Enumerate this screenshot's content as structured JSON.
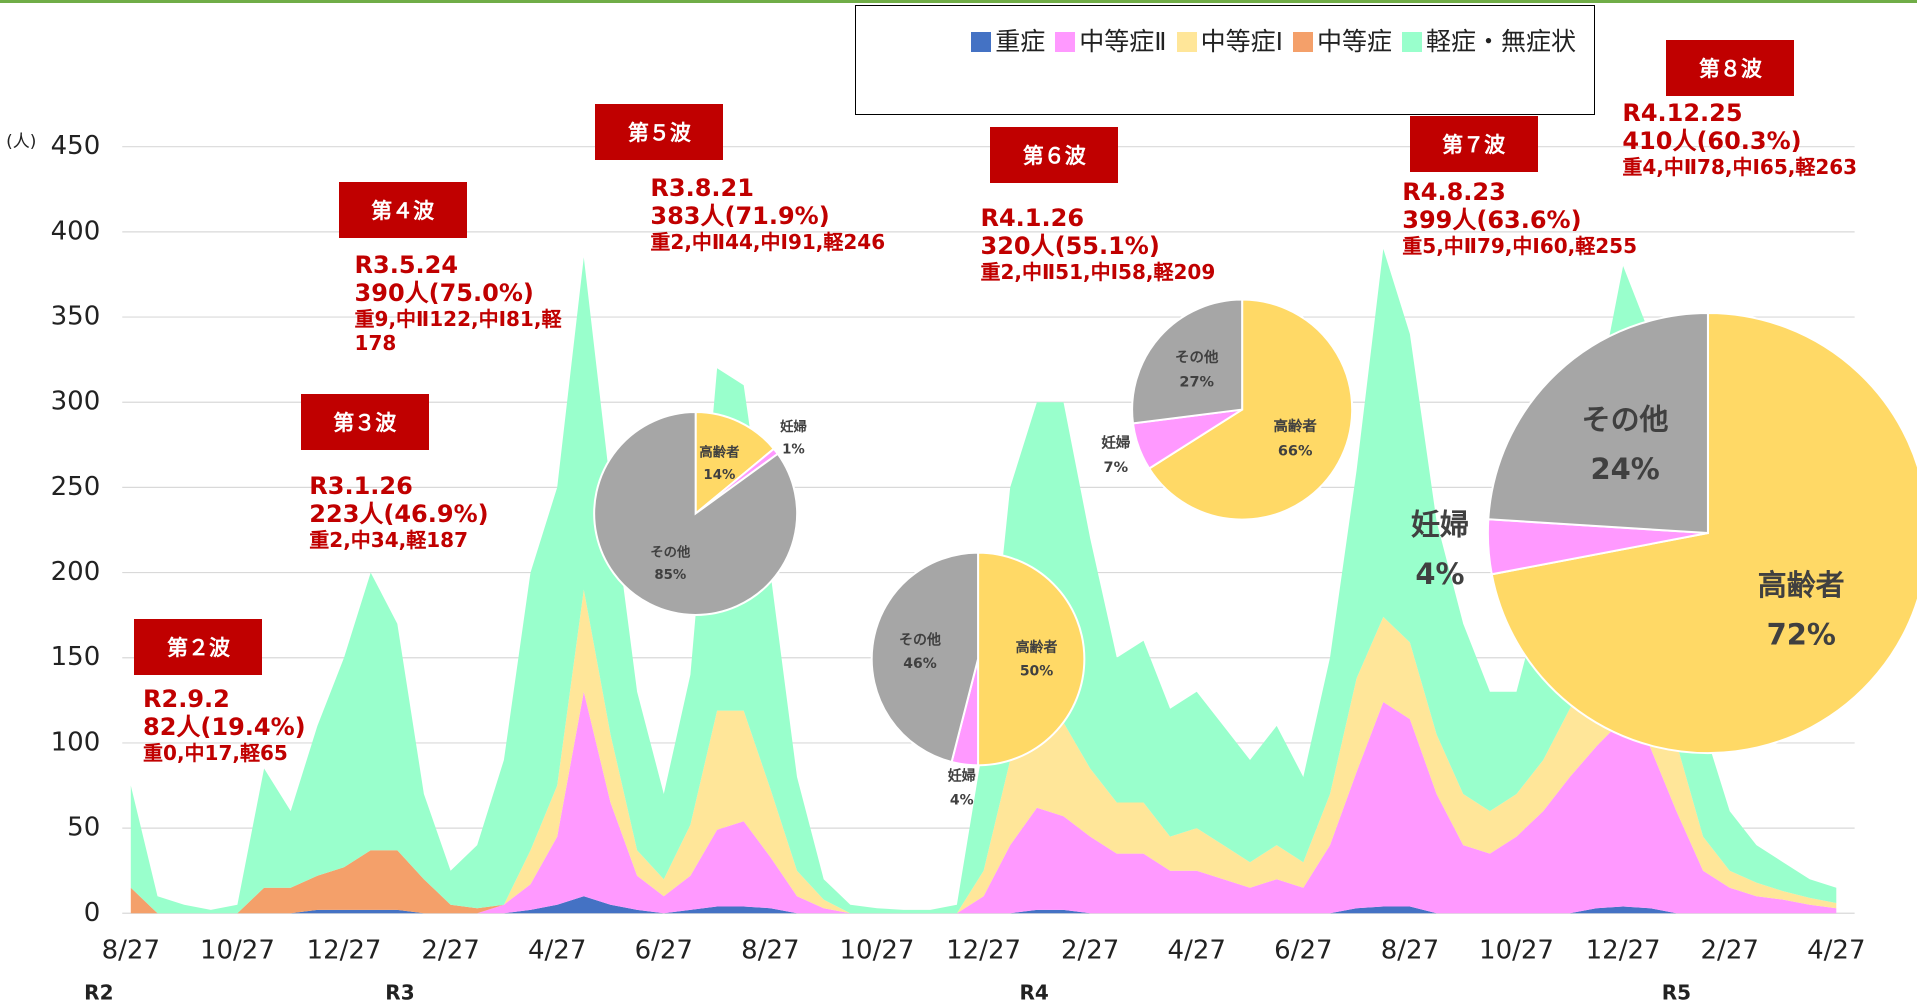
{
  "chart_data": [
    {
      "type": "area",
      "stacked": true,
      "grid": true,
      "y_unit": "(人)",
      "ylim": [
        0,
        450
      ],
      "yticks": [
        0,
        50,
        100,
        150,
        200,
        250,
        300,
        350,
        400,
        450
      ],
      "categories": [
        "8/27",
        null,
        null,
        null,
        "10/27",
        null,
        null,
        null,
        "12/27",
        null,
        null,
        null,
        "2/27",
        null,
        null,
        null,
        "4/27",
        null,
        null,
        null,
        "6/27",
        null,
        null,
        null,
        "8/27",
        null,
        null,
        null,
        "10/27",
        null,
        null,
        null,
        "12/27",
        null,
        null,
        null,
        "2/27",
        null,
        null,
        null,
        "4/27",
        null,
        null,
        null,
        "6/27",
        null,
        null,
        null,
        "8/27",
        null,
        null,
        null,
        "10/27",
        null,
        null,
        null,
        "12/27",
        null,
        null,
        null,
        "2/27",
        null,
        null,
        null,
        "4/27"
      ],
      "year_labels": [
        "R2",
        "R3",
        "R4",
        "R5"
      ],
      "series": [
        {
          "name": "重症",
          "color": "#4472c4",
          "values": [
            0,
            0,
            0,
            0,
            0,
            0,
            0,
            2,
            2,
            2,
            2,
            0,
            0,
            0,
            0,
            2,
            5,
            10,
            5,
            2,
            0,
            2,
            4,
            4,
            3,
            0,
            0,
            0,
            0,
            0,
            0,
            0,
            0,
            0,
            2,
            2,
            0,
            0,
            0,
            0,
            0,
            0,
            0,
            0,
            0,
            0,
            3,
            4,
            4,
            0,
            0,
            0,
            0,
            0,
            0,
            3,
            4,
            3,
            0,
            0,
            0,
            0,
            0,
            0,
            0
          ]
        },
        {
          "name": "中等症Ⅱ",
          "color": "#ff99ff",
          "values": [
            0,
            0,
            0,
            0,
            0,
            0,
            0,
            0,
            0,
            0,
            0,
            0,
            0,
            0,
            5,
            15,
            40,
            120,
            60,
            20,
            10,
            20,
            45,
            50,
            30,
            10,
            3,
            0,
            0,
            0,
            0,
            0,
            10,
            40,
            60,
            55,
            45,
            35,
            35,
            25,
            25,
            20,
            15,
            20,
            15,
            40,
            80,
            120,
            110,
            70,
            40,
            35,
            45,
            60,
            80,
            95,
            110,
            95,
            60,
            25,
            15,
            10,
            8,
            5,
            3
          ]
        },
        {
          "name": "中等症Ⅰ",
          "color": "#ffe699",
          "values": [
            0,
            0,
            0,
            0,
            0,
            0,
            0,
            0,
            0,
            0,
            0,
            0,
            0,
            0,
            0,
            20,
            30,
            60,
            40,
            15,
            10,
            30,
            70,
            65,
            40,
            15,
            5,
            0,
            0,
            0,
            0,
            0,
            15,
            50,
            60,
            55,
            40,
            30,
            30,
            20,
            25,
            20,
            15,
            20,
            15,
            30,
            55,
            50,
            45,
            35,
            30,
            25,
            25,
            30,
            40,
            50,
            55,
            50,
            40,
            20,
            10,
            8,
            5,
            4,
            3
          ]
        },
        {
          "name": "中等症",
          "color": "#f4a06a",
          "values": [
            15,
            0,
            0,
            0,
            0,
            15,
            15,
            20,
            25,
            35,
            35,
            20,
            5,
            3,
            0,
            0,
            0,
            0,
            0,
            0,
            0,
            0,
            0,
            0,
            0,
            0,
            0,
            0,
            0,
            0,
            0,
            0,
            0,
            0,
            0,
            0,
            0,
            0,
            0,
            0,
            0,
            0,
            0,
            0,
            0,
            0,
            0,
            0,
            0,
            0,
            0,
            0,
            0,
            0,
            0,
            0,
            0,
            0,
            0,
            0,
            0,
            0,
            0,
            0,
            0
          ]
        },
        {
          "name": "軽症・無症状",
          "color": "#99ffcc",
          "values": [
            60,
            10,
            5,
            2,
            5,
            70,
            45,
            88,
            123,
            163,
            133,
            50,
            20,
            37,
            85,
            163,
            175,
            195,
            145,
            93,
            50,
            88,
            201,
            191,
            127,
            55,
            12,
            5,
            3,
            2,
            2,
            5,
            75,
            160,
            178,
            188,
            135,
            85,
            95,
            75,
            80,
            70,
            60,
            70,
            50,
            80,
            122,
            216,
            181,
            125,
            100,
            70,
            60,
            100,
            130,
            152,
            211,
            192,
            120,
            65,
            35,
            22,
            17,
            11,
            9
          ]
        }
      ],
      "annotations": [
        {
          "wave": "第２波",
          "date": "R2.9.2",
          "total": "82人(19.4%)",
          "detail": "重0,中17,軽65"
        },
        {
          "wave": "第３波",
          "date": "R3.1.26",
          "total": "223人(46.9%)",
          "detail": "重2,中34,軽187"
        },
        {
          "wave": "第４波",
          "date": "R3.5.24",
          "total": "390人(75.0%)",
          "detail": "重9,中Ⅱ122,中Ⅰ81,軽178"
        },
        {
          "wave": "第５波",
          "date": "R3.8.21",
          "total": "383人(71.9%)",
          "detail": "重2,中Ⅱ44,中Ⅰ91,軽246"
        },
        {
          "wave": "第６波",
          "date": "R4.1.26",
          "total": "320人(55.1%)",
          "detail": "重2,中Ⅱ51,中Ⅰ58,軽209"
        },
        {
          "wave": "第７波",
          "date": "R4.8.23",
          "total": "399人(63.6%)",
          "detail": "重5,中Ⅱ79,中Ⅰ60,軽255"
        },
        {
          "wave": "第８波",
          "date": "R4.12.25",
          "total": "410人(60.3%)",
          "detail": "重4,中Ⅱ78,中Ⅰ65,軽263"
        }
      ]
    },
    {
      "type": "pie",
      "labels": [
        "高齢者",
        "妊婦",
        "その他"
      ],
      "values": [
        14,
        1,
        85
      ],
      "value_labels": [
        "14%",
        "1%",
        "85%"
      ],
      "colors": [
        "#ffd966",
        "#ff99ff",
        "#a6a6a6"
      ]
    },
    {
      "type": "pie",
      "labels": [
        "高齢者",
        "妊婦",
        "その他"
      ],
      "values": [
        50,
        4,
        46
      ],
      "value_labels": [
        "50%",
        "4%",
        "46%"
      ],
      "colors": [
        "#ffd966",
        "#ff99ff",
        "#a6a6a6"
      ]
    },
    {
      "type": "pie",
      "labels": [
        "高齢者",
        "妊婦",
        "その他"
      ],
      "values": [
        66,
        7,
        27
      ],
      "value_labels": [
        "66%",
        "7%",
        "27%"
      ],
      "colors": [
        "#ffd966",
        "#ff99ff",
        "#a6a6a6"
      ]
    },
    {
      "type": "pie",
      "labels": [
        "高齢者",
        "妊婦",
        "その他"
      ],
      "values": [
        72,
        4,
        24
      ],
      "value_labels": [
        "72%",
        "4%",
        "24%"
      ],
      "colors": [
        "#ffd966",
        "#ff99ff",
        "#a6a6a6"
      ]
    }
  ]
}
